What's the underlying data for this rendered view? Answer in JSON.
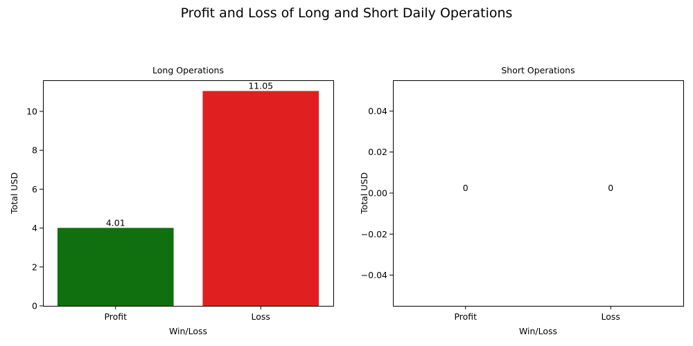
{
  "figure": {
    "title": "Profit and Loss of Long and Short Daily Operations"
  },
  "chart_data": [
    {
      "type": "bar",
      "title": "Long Operations",
      "xlabel": "Win/Loss",
      "ylabel": "Total USD",
      "categories": [
        "Profit",
        "Loss"
      ],
      "values": [
        4.01,
        11.05
      ],
      "data_labels": [
        "4.01",
        "11.05"
      ],
      "colors": [
        "#107010",
        "#e02020"
      ],
      "ylim": [
        0,
        11.6
      ],
      "yticks": [
        0,
        2,
        4,
        6,
        8,
        10
      ],
      "ytick_labels": [
        "0",
        "2",
        "4",
        "6",
        "8",
        "10"
      ],
      "grid": false,
      "legend": "none"
    },
    {
      "type": "bar",
      "title": "Short Operations",
      "xlabel": "Win/Loss",
      "ylabel": "Total USD",
      "categories": [
        "Profit",
        "Loss"
      ],
      "values": [
        0,
        0
      ],
      "data_labels": [
        "0",
        "0"
      ],
      "colors": [
        "#107010",
        "#e02020"
      ],
      "ylim": [
        -0.055,
        0.055
      ],
      "yticks": [
        -0.04,
        -0.02,
        0.0,
        0.02,
        0.04
      ],
      "ytick_labels": [
        "−0.04",
        "−0.02",
        "0.00",
        "0.02",
        "0.04"
      ],
      "grid": false,
      "legend": "none"
    }
  ]
}
